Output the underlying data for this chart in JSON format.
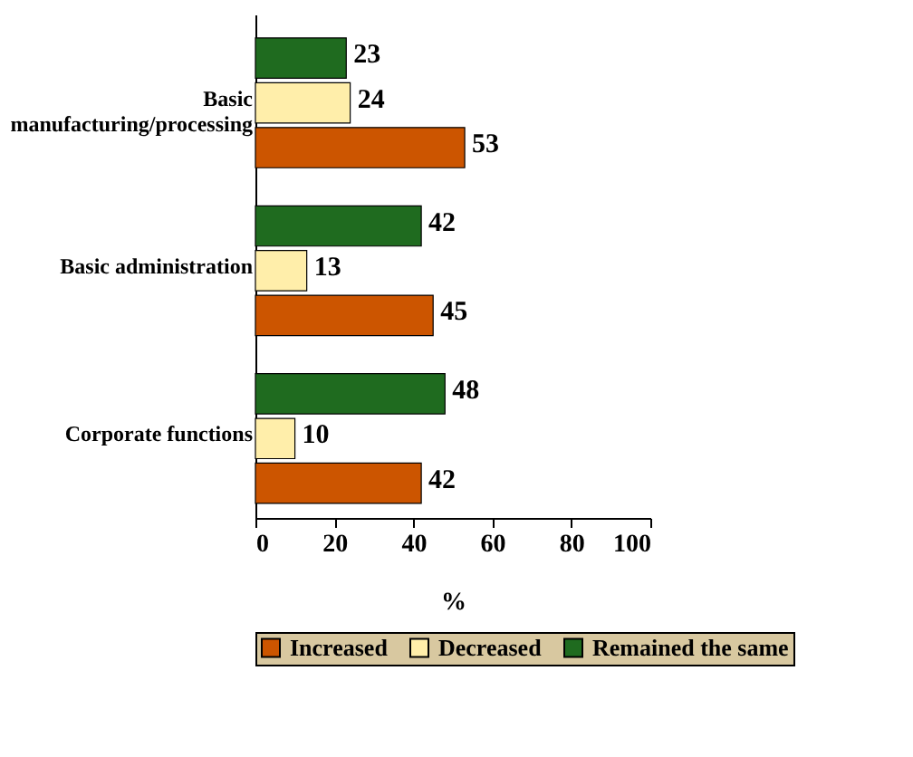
{
  "chart_data": {
    "type": "bar",
    "orientation": "horizontal",
    "categories": [
      "Basic manufacturing/processing",
      "Basic administration",
      "Corporate functions"
    ],
    "series": [
      {
        "name": "Increased",
        "color": "#cc5500",
        "values": [
          53,
          45,
          42
        ]
      },
      {
        "name": "Decreased",
        "color": "#ffeeaa",
        "values": [
          24,
          13,
          10
        ]
      },
      {
        "name": "Remained the same",
        "color": "#1f6b1f",
        "values": [
          23,
          42,
          48
        ]
      }
    ],
    "xlabel": "%",
    "xlim": [
      0,
      100
    ],
    "xticks": [
      0,
      20,
      40,
      60,
      80,
      100
    ],
    "grid": false,
    "legend": "bottom",
    "data_labels": true
  }
}
